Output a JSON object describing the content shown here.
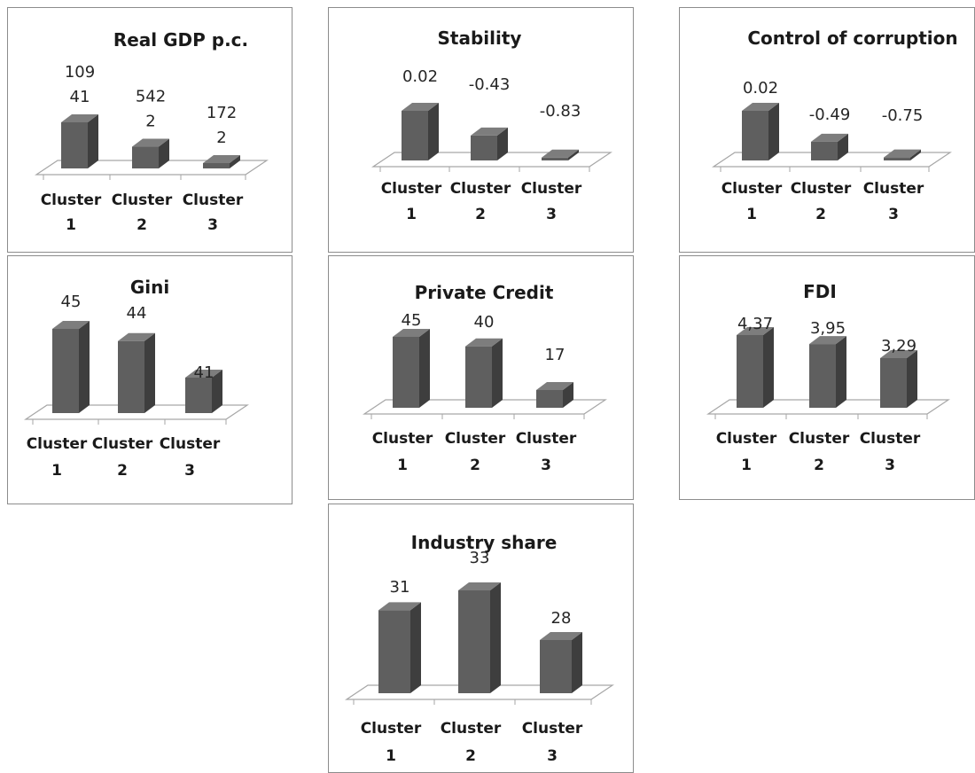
{
  "chart_data": [
    {
      "id": "gdp",
      "type": "bar",
      "title": "Real GDP p.c.",
      "categories": [
        "Cluster 1",
        "Cluster 2",
        "Cluster 3"
      ],
      "values": [
        10941,
        5422,
        1722
      ],
      "data_labels": [
        [
          "109",
          "41"
        ],
        [
          "542",
          "2"
        ],
        [
          "172",
          "2"
        ]
      ]
    },
    {
      "id": "stability",
      "type": "bar",
      "title": "Stability",
      "categories": [
        "Cluster 1",
        "Cluster 2",
        "Cluster 3"
      ],
      "values": [
        0.02,
        -0.43,
        -0.83
      ],
      "data_labels": [
        [
          "0.02"
        ],
        [
          "-0.43"
        ],
        [
          "-0.83"
        ]
      ]
    },
    {
      "id": "corruption",
      "type": "bar",
      "title": "Control of corruption",
      "categories": [
        "Cluster 1",
        "Cluster 2",
        "Cluster 3"
      ],
      "values": [
        0.02,
        -0.49,
        -0.75
      ],
      "data_labels": [
        [
          "0.02"
        ],
        [
          "-0.49"
        ],
        [
          "-0.75"
        ]
      ]
    },
    {
      "id": "gini",
      "type": "bar",
      "title": "Gini",
      "categories": [
        "Cluster 1",
        "Cluster 2",
        "Cluster 3"
      ],
      "values": [
        45,
        44,
        41
      ],
      "data_labels": [
        [
          "45"
        ],
        [
          "44"
        ],
        [
          "41"
        ]
      ]
    },
    {
      "id": "credit",
      "type": "bar",
      "title": "Private Credit",
      "categories": [
        "Cluster 1",
        "Cluster 2",
        "Cluster 3"
      ],
      "values": [
        45,
        40,
        17
      ],
      "data_labels": [
        [
          "45"
        ],
        [
          "40"
        ],
        [
          "17"
        ]
      ]
    },
    {
      "id": "fdi",
      "type": "bar",
      "title": "FDI",
      "categories": [
        "Cluster 1",
        "Cluster 2",
        "Cluster 3"
      ],
      "values": [
        4.37,
        3.95,
        3.29
      ],
      "data_labels": [
        [
          "4,37"
        ],
        [
          "3,95"
        ],
        [
          "3,29"
        ]
      ]
    },
    {
      "id": "industry",
      "type": "bar",
      "title": "Industry share",
      "categories": [
        "Cluster 1",
        "Cluster 2",
        "Cluster 3"
      ],
      "values": [
        31,
        33,
        28
      ],
      "data_labels": [
        [
          "31"
        ],
        [
          "33"
        ],
        [
          "28"
        ]
      ]
    }
  ],
  "colors": {
    "bar_front": "#5f5f5f",
    "bar_side": "#3e3e3e",
    "bar_top": "#7d7d7d",
    "floor_line": "#a6a6a6",
    "panel_border": "#8c8c8c"
  }
}
